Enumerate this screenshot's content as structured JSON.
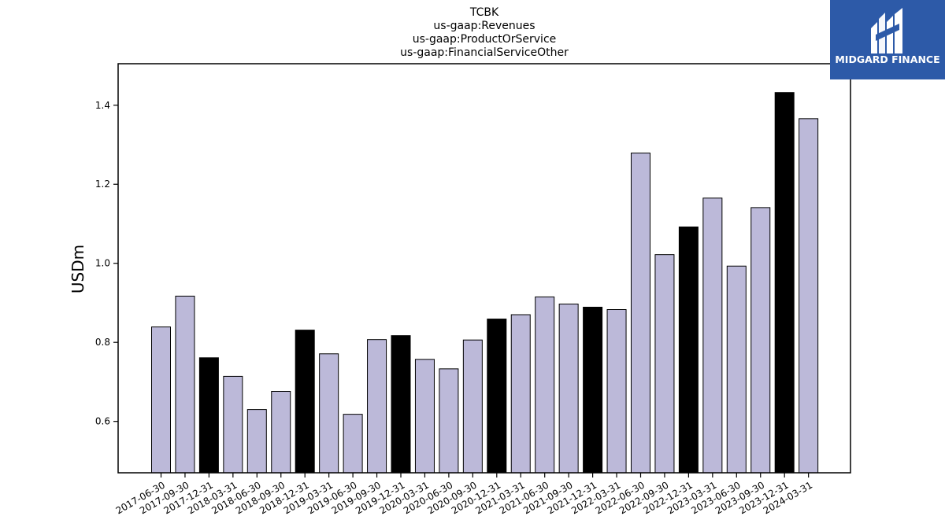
{
  "logo": {
    "text": "MIDGARD FINANCE"
  },
  "chart_data": {
    "type": "bar",
    "title_lines": [
      "TCBK",
      "us-gaap:Revenues",
      "us-gaap:ProductOrService",
      "us-gaap:FinancialServiceOther"
    ],
    "ylabel": "USDm",
    "xlabel": "",
    "ylim": [
      0.47,
      1.505
    ],
    "yticks": [
      0.6,
      0.8,
      1.0,
      1.2,
      1.4
    ],
    "ytick_labels": [
      "0.6",
      "0.8",
      "1.0",
      "1.2",
      "1.4"
    ],
    "categories": [
      "2017-06-30",
      "2017-09-30",
      "2017-12-31",
      "2018-03-31",
      "2018-06-30",
      "2018-09-30",
      "2018-12-31",
      "2019-03-31",
      "2019-06-30",
      "2019-09-30",
      "2019-12-31",
      "2020-03-31",
      "2020-06-30",
      "2020-09-30",
      "2020-12-31",
      "2021-03-31",
      "2021-06-30",
      "2021-09-30",
      "2021-12-31",
      "2022-03-31",
      "2022-06-30",
      "2022-09-30",
      "2022-12-31",
      "2023-03-31",
      "2023-06-30",
      "2023-09-30",
      "2023-12-31",
      "2024-03-31"
    ],
    "values": [
      0.839,
      0.917,
      0.761,
      0.714,
      0.63,
      0.676,
      0.831,
      0.771,
      0.618,
      0.807,
      0.817,
      0.757,
      0.733,
      0.806,
      0.859,
      0.87,
      0.915,
      0.897,
      0.889,
      0.883,
      1.279,
      1.022,
      1.092,
      1.165,
      0.993,
      1.141,
      1.432,
      1.366
    ],
    "highlight_indices": [
      2,
      6,
      10,
      14,
      18,
      22,
      26
    ],
    "colors": {
      "bar": "#bcb9d9",
      "highlight": "#000000",
      "edge": "#000000",
      "axis": "#000000"
    },
    "grid": false,
    "legend": "none"
  }
}
